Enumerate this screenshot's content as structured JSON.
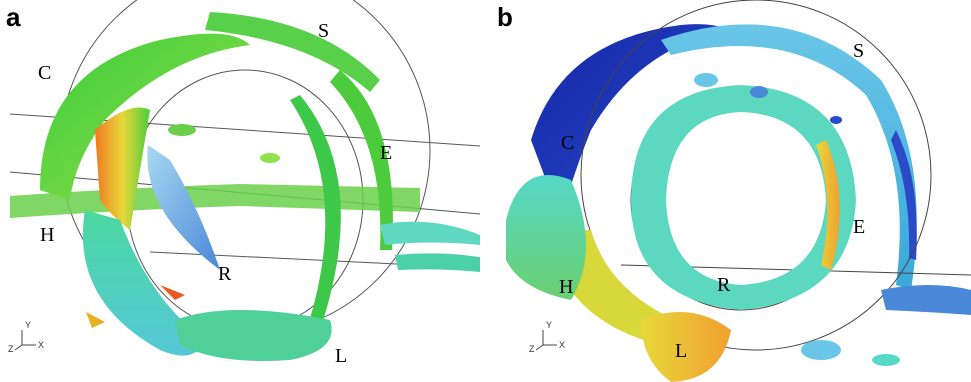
{
  "panels": [
    {
      "letter": "a",
      "labels": {
        "S": "S",
        "C": "C",
        "E": "E",
        "H": "H",
        "R": "R",
        "L": "L"
      },
      "axis": {
        "y": "Y",
        "z": "Z",
        "x": "X"
      }
    },
    {
      "letter": "b",
      "labels": {
        "S": "S",
        "C": "C",
        "E": "E",
        "H": "H",
        "R": "R",
        "L": "L"
      },
      "axis": {
        "y": "Y",
        "z": "Z",
        "x": "X"
      }
    }
  ],
  "colors": {
    "green": "#4ccc3c",
    "light_green": "#8fe04a",
    "cyan": "#55d8c8",
    "light_blue": "#6ac6e8",
    "dark_blue": "#1428a8",
    "orange": "#f07820",
    "red": "#e03a18",
    "yellow": "#e8d83a"
  }
}
